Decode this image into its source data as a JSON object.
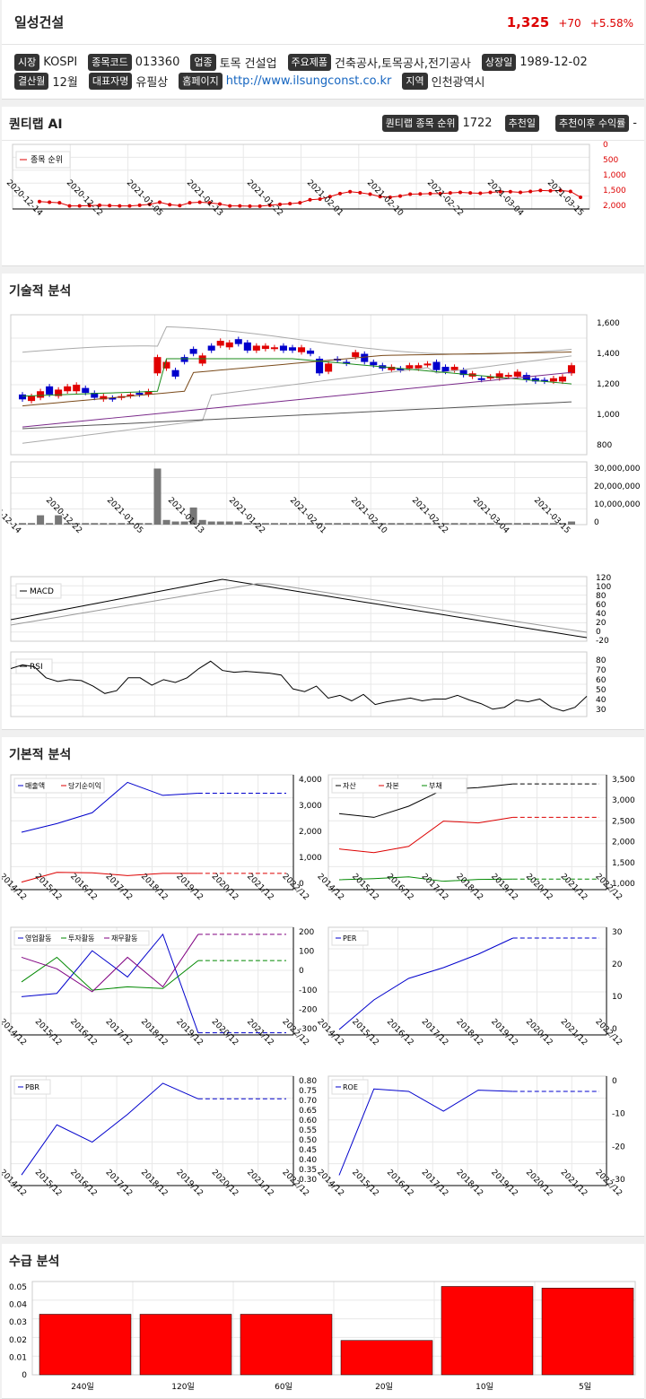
{
  "header": {
    "name": "일성건설",
    "price": "1,325",
    "change": "+70",
    "change_pct": "+5.58%"
  },
  "info": [
    [
      {
        "tag": "시장",
        "val": "KOSPI"
      },
      {
        "tag": "종목코드",
        "val": "013360"
      },
      {
        "tag": "업종",
        "val": "토목 건설업"
      },
      {
        "tag": "주요제품",
        "val": "건축공사,토목공사,전기공사"
      },
      {
        "tag": "상장일",
        "val": "1989-12-02"
      }
    ],
    [
      {
        "tag": "결산월",
        "val": "12월"
      },
      {
        "tag": "대표자명",
        "val": "유필상"
      },
      {
        "tag": "홈페이지",
        "val": "http://www.ilsungconst.co.kr",
        "link": true
      },
      {
        "tag": "지역",
        "val": "인천광역시"
      }
    ]
  ],
  "quant": {
    "title": "퀀티랩 AI",
    "rank_tag": "퀀티랩 종목 순위",
    "rank_val": "1722",
    "rec_tag": "추천일",
    "rec_val": "",
    "ret_tag": "추천이후 수익률",
    "ret_val": "-"
  },
  "tech_title": "기술적 분석",
  "fund_title": "기본적 분석",
  "flow_title": "수급 분석",
  "colors": {
    "up": "#e00000",
    "down": "#0000cc",
    "accent": "#d00000"
  },
  "rank_chart": {
    "legend": "종목 순위",
    "y_ticks": [
      "0",
      "500",
      "1,000",
      "1,500",
      "2,000"
    ],
    "x_ticks": [
      "2020-12-14",
      "2020-12-22",
      "2021-01-05",
      "2021-01-13",
      "2021-01-22",
      "2021-02-01",
      "2021-02-10",
      "2021-02-22",
      "2021-03-04",
      "2021-03-15"
    ],
    "ranks": [
      1860,
      1880,
      1900,
      2000,
      2000,
      1990,
      1980,
      1990,
      2000,
      2000,
      1980,
      1950,
      1880,
      1960,
      1990,
      1900,
      1880,
      1900,
      1940,
      2000,
      2000,
      2010,
      2010,
      1980,
      1950,
      1930,
      1900,
      1800,
      1780,
      1700,
      1600,
      1540,
      1570,
      1620,
      1700,
      1720,
      1680,
      1620,
      1610,
      1600,
      1600,
      1580,
      1560,
      1580,
      1590,
      1560,
      1540,
      1540,
      1560,
      1530,
      1500,
      1510,
      1500,
      1530,
      1720
    ]
  },
  "price_chart": {
    "y_ticks": [
      "800",
      "1,000",
      "1,200",
      "1,400",
      "1,600"
    ],
    "vol_ticks": [
      "0",
      "10,000,000",
      "20,000,000",
      "30,000,000"
    ],
    "x_ticks": [
      "2020-12-14",
      "2020-12-22",
      "2021-01-05",
      "2021-01-13",
      "2021-01-22",
      "2021-02-01",
      "2021-02-10",
      "2021-02-22",
      "2021-03-04",
      "2021-03-15"
    ]
  },
  "macd": {
    "legend": "MACD",
    "ticks": [
      "120",
      "100",
      "80",
      "60",
      "40",
      "20",
      "0",
      "-20"
    ]
  },
  "rsi": {
    "legend": "RSI",
    "ticks": [
      "80",
      "70",
      "60",
      "50",
      "40",
      "30"
    ]
  },
  "fund_years": [
    "2014/12",
    "2015/12",
    "2016/12",
    "2017/12",
    "2018/12",
    "2019/12",
    "2020/12",
    "2021/12",
    "2022/12"
  ],
  "fund_charts": {
    "sales": {
      "legend": [
        "매출액",
        "당기순이익"
      ],
      "ticks": [
        "4,000",
        "3,000",
        "2,000",
        "1,000",
        "0"
      ]
    },
    "assets": {
      "legend": [
        "자산",
        "자본",
        "부채"
      ],
      "ticks": [
        "3,500",
        "3,000",
        "2,500",
        "2,000",
        "1,500",
        "1,000"
      ]
    },
    "cash": {
      "legend": [
        "영업활동",
        "투자활동",
        "재무활동"
      ],
      "ticks": [
        "200",
        "100",
        "0",
        "-100",
        "-200",
        "-300"
      ]
    },
    "per": {
      "legend": "PER",
      "ticks": [
        "30",
        "20",
        "10",
        "0"
      ]
    },
    "pbr": {
      "legend": "PBR",
      "ticks": [
        "0.80",
        "0.75",
        "0.70",
        "0.65",
        "0.60",
        "0.55",
        "0.50",
        "0.45",
        "0.40",
        "0.35",
        "0.30"
      ]
    },
    "roe": {
      "legend": "ROE",
      "ticks": [
        "0",
        "-10",
        "-20",
        "-30"
      ]
    }
  },
  "chart_data": [
    {
      "type": "line",
      "title": "",
      "series": [
        {
          "name": "매출액",
          "values": [
            1900,
            2300,
            2800,
            4200,
            3600,
            3700
          ]
        },
        {
          "name": "당기순이익",
          "values": [
            -400,
            50,
            30,
            -100,
            0,
            0
          ]
        }
      ],
      "x": [
        "2014/12",
        "2015/12",
        "2016/12",
        "2017/12",
        "2018/12",
        "2019/12"
      ]
    },
    {
      "type": "line",
      "series": [
        {
          "name": "자산",
          "values": [
            2700,
            2600,
            2900,
            3350,
            3400,
            3500
          ]
        },
        {
          "name": "자본",
          "values": [
            920,
            950,
            1000,
            880,
            930,
            940
          ]
        },
        {
          "name": "부채",
          "values": [
            1750,
            1650,
            1820,
            2500,
            2450,
            2600
          ]
        }
      ],
      "x": [
        "2014/12",
        "2015/12",
        "2016/12",
        "2017/12",
        "2018/12",
        "2019/12"
      ]
    },
    {
      "type": "line",
      "series": [
        {
          "name": "PER",
          "values": [
            -1,
            10,
            18,
            22,
            27,
            33
          ]
        }
      ],
      "x": [
        "2014/12",
        "2015/12",
        "2016/12",
        "2017/12",
        "2018/12",
        "2019/12"
      ]
    },
    {
      "type": "line",
      "series": [
        {
          "name": "PBR",
          "values": [
            0.31,
            0.6,
            0.5,
            0.66,
            0.84,
            0.75
          ]
        }
      ],
      "x": [
        "2014/12",
        "2015/12",
        "2016/12",
        "2017/12",
        "2018/12",
        "2019/12"
      ]
    },
    {
      "type": "line",
      "series": [
        {
          "name": "ROE",
          "values": [
            -33,
            2,
            1,
            -7,
            1.5,
            1
          ]
        }
      ],
      "x": [
        "2014/12",
        "2015/12",
        "2016/12",
        "2017/12",
        "2018/12",
        "2019/12"
      ]
    },
    {
      "type": "bar",
      "categories": [
        "240일",
        "120일",
        "60일",
        "20일",
        "10일",
        "5일"
      ],
      "values": [
        0.037,
        0.037,
        0.037,
        0.021,
        0.054,
        0.053
      ],
      "yticks": [
        "0",
        "0.01",
        "0.02",
        "0.03",
        "0.04",
        "0.05"
      ]
    }
  ]
}
